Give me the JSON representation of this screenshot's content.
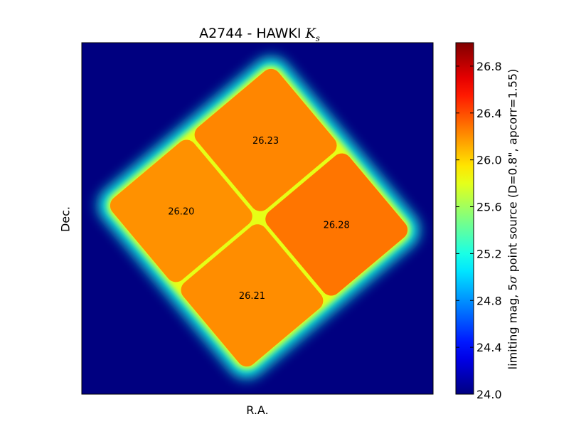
{
  "title": {
    "prefix": "A2744 - HAWKI ",
    "math": "K",
    "math_sub": "s"
  },
  "xlabel": "R.A.",
  "ylabel": "Dec.",
  "colorbar": {
    "label_before": "limiting mag, 5",
    "label_sigma": "σ",
    "label_after": " point source (D=0.8\", apcorr=1.55)",
    "range": [
      24.0,
      27.0
    ],
    "ticks": [
      "24.0",
      "24.4",
      "24.8",
      "25.2",
      "25.6",
      "26.0",
      "26.4",
      "26.8"
    ],
    "colormap": "jet"
  },
  "chart_data": {
    "type": "heatmap",
    "title": "A2744 - HAWKI Ks",
    "xlabel": "R.A.",
    "ylabel": "Dec.",
    "background_value": 24.0,
    "colorbar_range": [
      24.0,
      27.0
    ],
    "colormap": "jet",
    "pointings": [
      {
        "label": "26.20",
        "value": 26.2,
        "position": "top"
      },
      {
        "label": "26.23",
        "value": 26.23,
        "position": "right"
      },
      {
        "label": "26.21",
        "value": 26.21,
        "position": "left"
      },
      {
        "label": "26.28",
        "value": 26.28,
        "position": "bottom"
      }
    ],
    "overlap_value": 25.8,
    "edge_value": 25.2
  }
}
